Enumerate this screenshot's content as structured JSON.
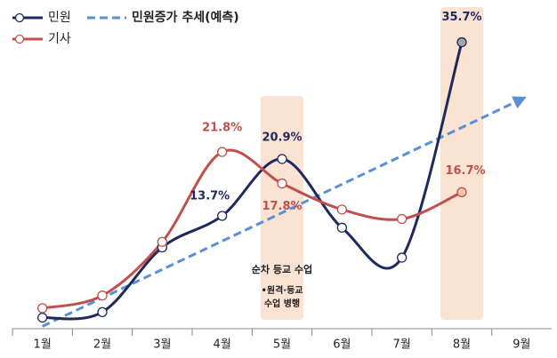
{
  "chart_data": {
    "type": "line",
    "categories": [
      "1월",
      "2월",
      "3월",
      "4월",
      "5월",
      "6월",
      "7월",
      "8월",
      "9월"
    ],
    "series": [
      {
        "name": "민원",
        "color": "#1f2a5c",
        "values": [
          0.8,
          1.5,
          9.7,
          13.7,
          20.9,
          12.2,
          8.4,
          35.7,
          null
        ],
        "value_labels": [
          null,
          null,
          null,
          "13.7%",
          "20.9%",
          null,
          null,
          "35.7%",
          null
        ]
      },
      {
        "name": "기사",
        "color": "#c0504d",
        "values": [
          2.0,
          3.6,
          10.4,
          21.8,
          17.8,
          14.5,
          13.3,
          16.7,
          null
        ],
        "value_labels": [
          null,
          null,
          null,
          "21.8%",
          "17.8%",
          null,
          null,
          "16.7%",
          null
        ]
      }
    ],
    "trend": {
      "name": "민원증가 추세(예측)",
      "color": "#5b8fd6",
      "values": [
        -0.3,
        28.5
      ]
    },
    "highlights": [
      "5월",
      "8월"
    ],
    "annotation": [
      "순차 등교 수업",
      "•원격·등교",
      "수업 병행"
    ],
    "ylim": [
      -0.6,
      38.8
    ]
  }
}
